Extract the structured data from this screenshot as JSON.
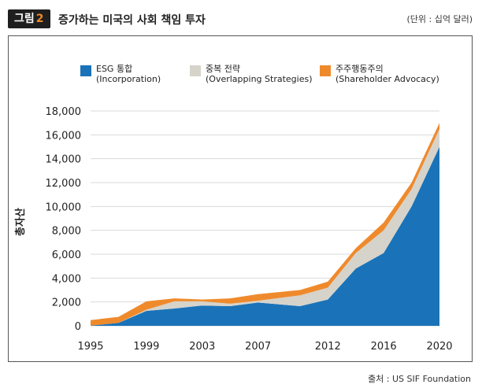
{
  "header": {
    "badge_text": "그림",
    "badge_num": "2",
    "title": "증가하는 미국의 사회 책임 투자",
    "unit": "(단위 : 십억 달러)"
  },
  "source": "출처 : US SIF Foundation",
  "colors": {
    "esg": "#1a73b8",
    "overlap": "#d6d3cb",
    "advocacy": "#ef8a2c",
    "grid": "#d9d9d9",
    "frame": "#555555"
  },
  "chart_data": {
    "type": "area",
    "stacked": true,
    "title": "증가하는 미국의 사회 책임 투자",
    "ylabel": "총자산",
    "xlabel": "",
    "ylim": [
      0,
      18000
    ],
    "xlim": [
      1995,
      2020
    ],
    "y_ticks": [
      0,
      2000,
      4000,
      6000,
      8000,
      10000,
      12000,
      14000,
      16000,
      18000
    ],
    "y_tick_labels": [
      "0",
      "2,000",
      "4,000",
      "6,000",
      "8,000",
      "10,000",
      "12,000",
      "14,000",
      "16,000",
      "18,000"
    ],
    "x_ticks": [
      1995,
      1999,
      2003,
      2007,
      2012,
      2016,
      2020
    ],
    "x_tick_labels": [
      "1995",
      "1999",
      "2003",
      "2007",
      "2012",
      "2016",
      "2020"
    ],
    "legend_position": "top",
    "grid": true,
    "x": [
      1995,
      1997,
      1999,
      2001,
      2003,
      2005,
      2007,
      2010,
      2012,
      2014,
      2016,
      2018,
      2020
    ],
    "series": [
      {
        "name": "ESG 통합",
        "name_en": "(Incorporation)",
        "color": "#1a73b8",
        "values": [
          12,
          250,
          1250,
          1450,
          1700,
          1650,
          1950,
          1650,
          2200,
          4800,
          6100,
          10000,
          15000
        ]
      },
      {
        "name": "중복 전략",
        "name_en": "(Overlapping Strategies)",
        "color": "#d6d3cb",
        "values": [
          0,
          0,
          100,
          600,
          350,
          200,
          150,
          900,
          1000,
          1300,
          1900,
          1450,
          1500
        ]
      },
      {
        "name": "주주행동주의",
        "name_en": "(Shareholder Advocacy)",
        "color": "#ef8a2c",
        "values": [
          470,
          500,
          700,
          250,
          150,
          450,
          550,
          450,
          500,
          400,
          650,
          550,
          500
        ]
      }
    ]
  }
}
